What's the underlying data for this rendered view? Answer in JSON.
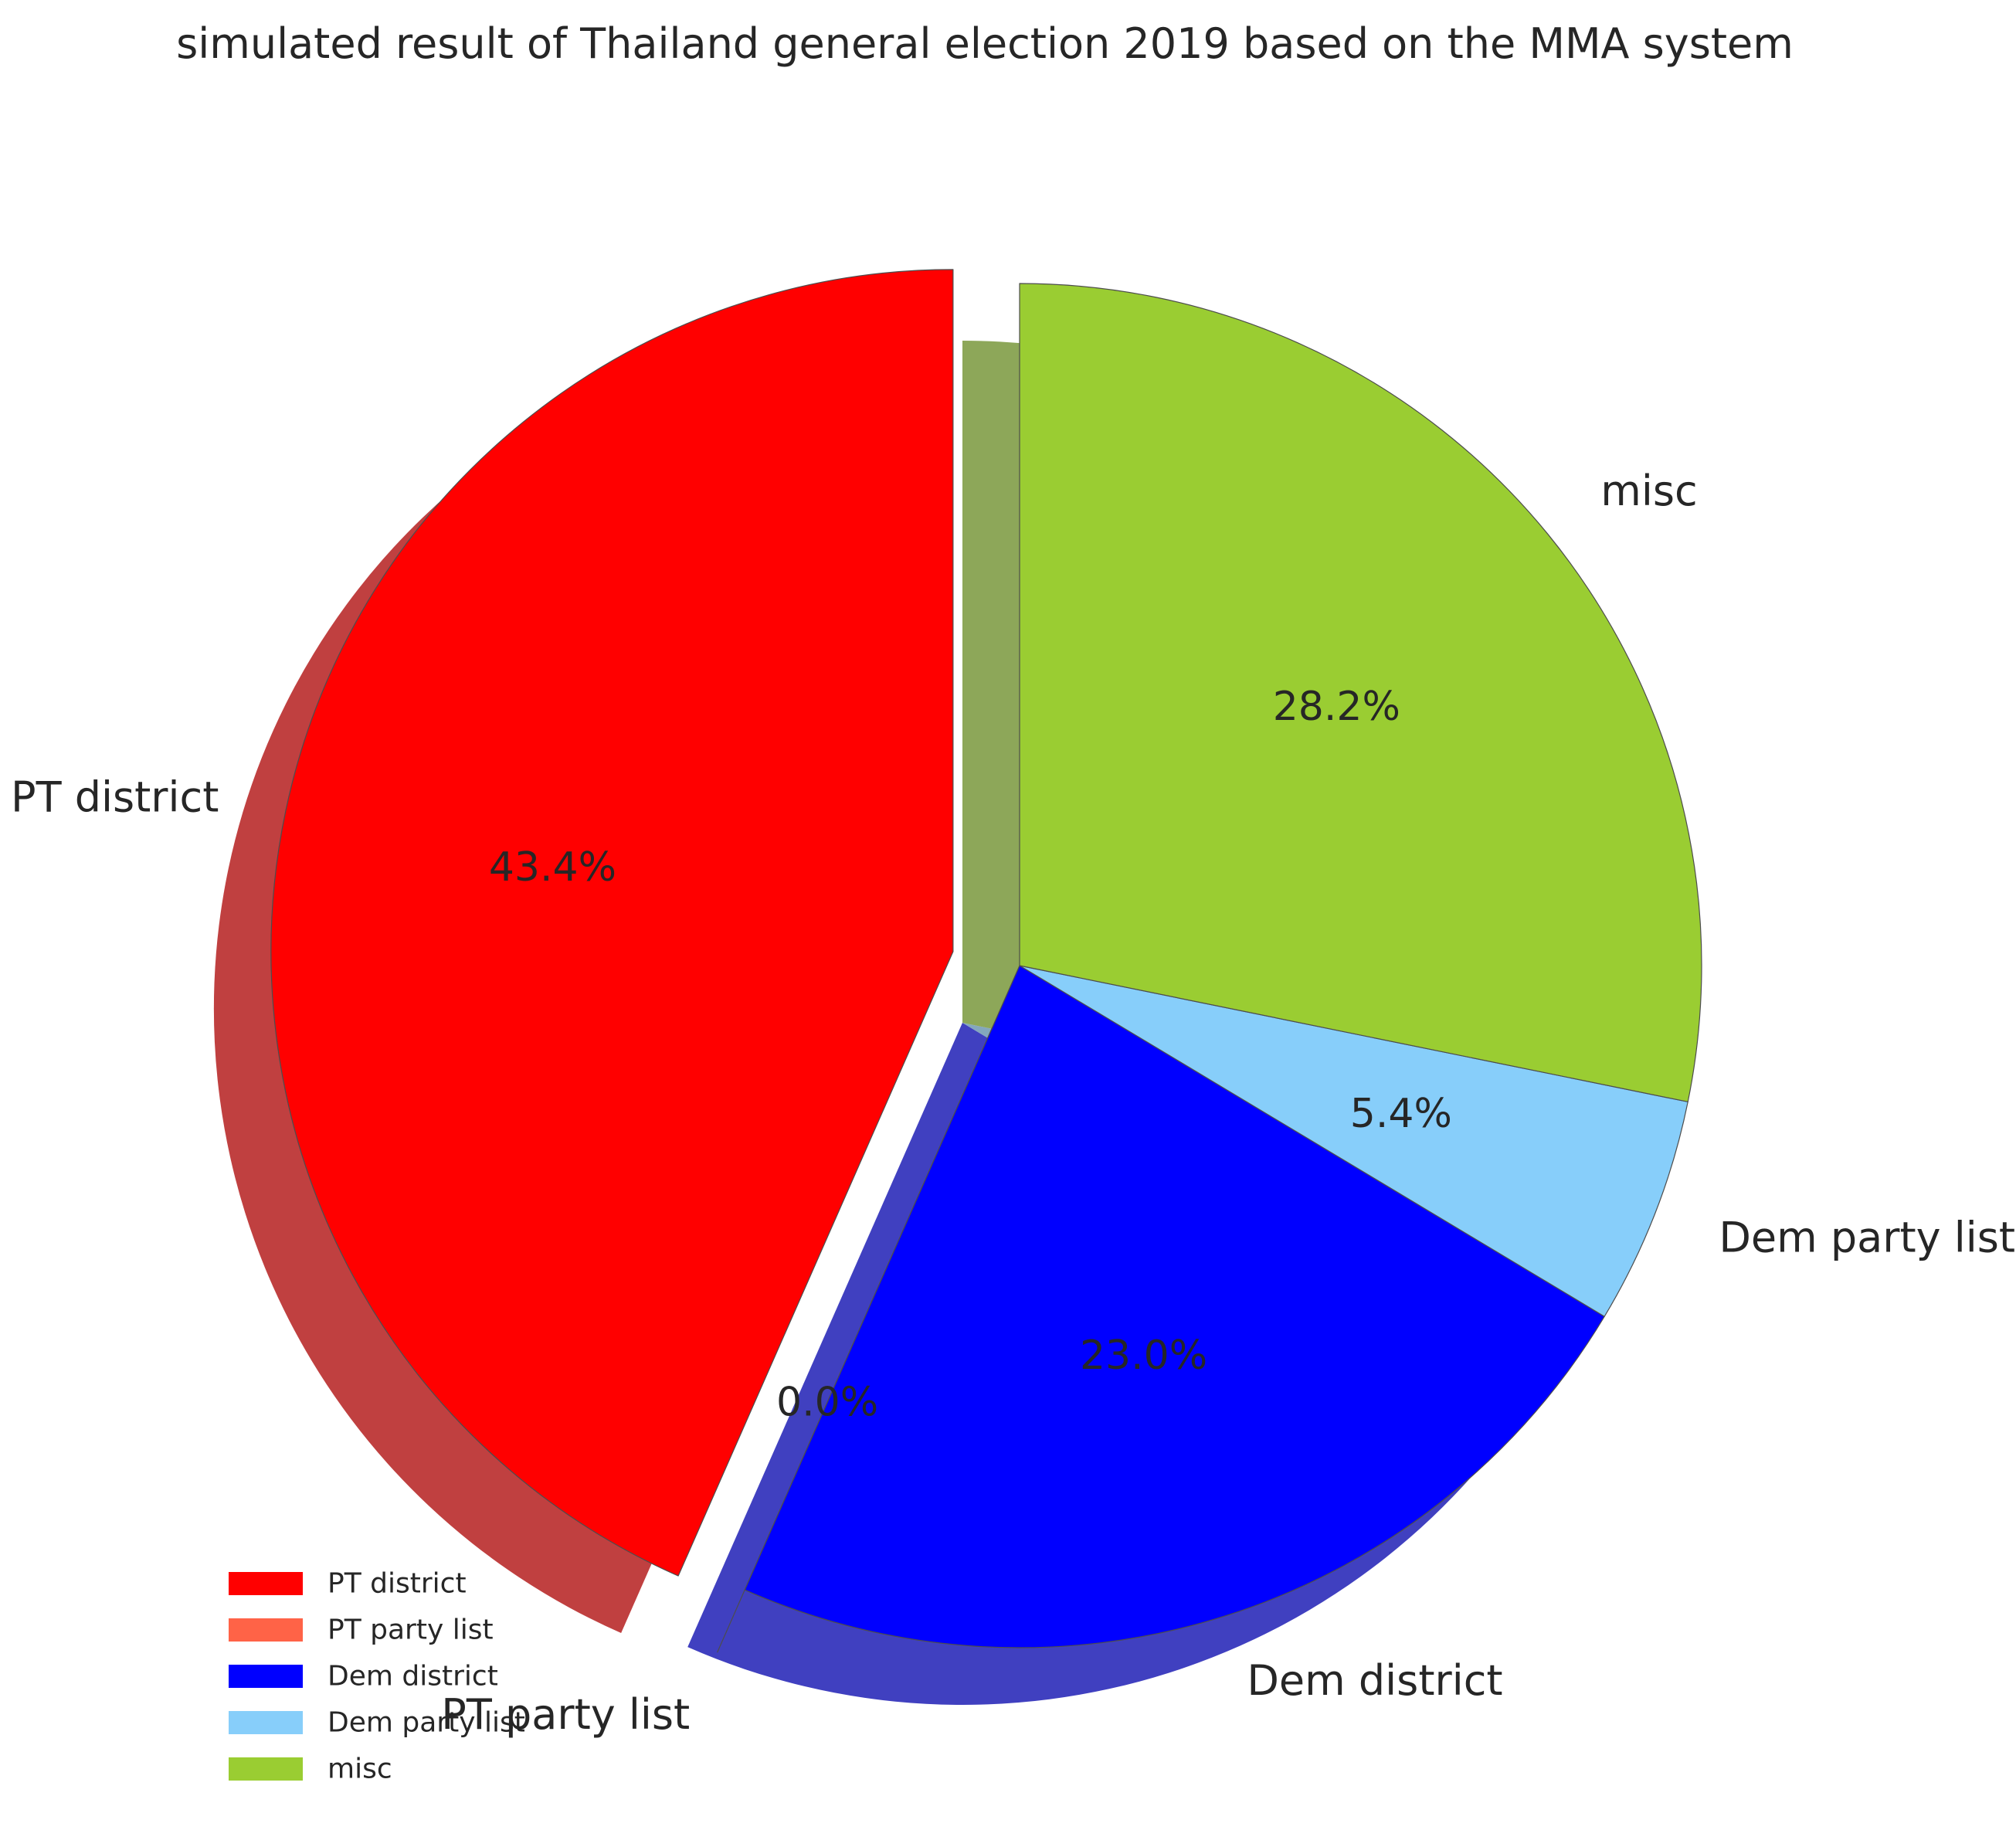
{
  "chart_data": {
    "type": "pie",
    "title": "simulated result of Thailand general election 2019 based on the MMA system",
    "labels": [
      "PT district",
      "PT party list",
      "Dem district",
      "Dem party list",
      "misc"
    ],
    "values": [
      43.4,
      0.0,
      23.0,
      5.4,
      28.2
    ],
    "percent_labels": [
      "43.4%",
      "0.0%",
      "23.0%",
      "5.4%",
      "28.2%"
    ],
    "colors": [
      "#ff0000",
      "#ff6347",
      "#0000ff",
      "#87cefa",
      "#9acd32"
    ],
    "explode": [
      true,
      true,
      false,
      false,
      false
    ],
    "shadow": true,
    "start_angle_deg": 90,
    "direction": "counterclockwise",
    "legend": {
      "placement": "lower-left",
      "entries": [
        "PT district",
        "PT party list",
        "Dem district",
        "Dem party list",
        "misc"
      ]
    }
  }
}
